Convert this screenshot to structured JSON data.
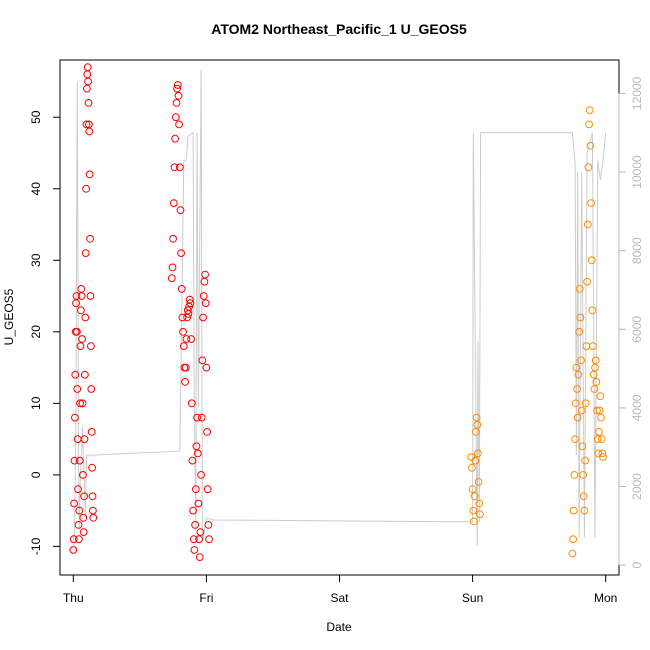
{
  "chart_data": {
    "type": "scatter",
    "title": "ATOM2 Northeast_Pacific_1 U_GEOS5",
    "xlabel": "Date",
    "ylabel": "U_GEOS5",
    "x_ticks": [
      "Thu",
      "Fri",
      "Sat",
      "Sun",
      "Mon"
    ],
    "x_tick_positions": [
      0,
      1,
      2,
      3,
      4
    ],
    "xlim": [
      -0.1,
      4.1
    ],
    "ylim": [
      -14,
      58
    ],
    "y_ticks": [
      -10,
      0,
      10,
      20,
      30,
      40,
      50
    ],
    "y2lim": [
      -250,
      12850
    ],
    "y2_ticks": [
      0,
      2000,
      4000,
      6000,
      8000,
      10000,
      12000
    ],
    "grid": false,
    "series": [
      {
        "color": "#ff0000",
        "marker": "open-circle",
        "points": [
          [
            0.0,
            -10.5
          ],
          [
            0.003,
            -9.0
          ],
          [
            0.006,
            -4.0
          ],
          [
            0.009,
            2.0
          ],
          [
            0.012,
            8.0
          ],
          [
            0.015,
            14.0
          ],
          [
            0.018,
            20.0
          ],
          [
            0.021,
            24.0
          ],
          [
            0.024,
            25.0
          ],
          [
            0.027,
            20.0
          ],
          [
            0.03,
            12.0
          ],
          [
            0.033,
            5.0
          ],
          [
            0.036,
            -2.0
          ],
          [
            0.039,
            -7.0
          ],
          [
            0.042,
            -9.0
          ],
          [
            0.045,
            -5.0
          ],
          [
            0.048,
            2.0
          ],
          [
            0.051,
            10.0
          ],
          [
            0.054,
            18.0
          ],
          [
            0.057,
            23.0
          ],
          [
            0.06,
            26.0
          ],
          [
            0.063,
            25.0
          ],
          [
            0.066,
            19.0
          ],
          [
            0.069,
            10.0
          ],
          [
            0.072,
            0.0
          ],
          [
            0.075,
            -6.0
          ],
          [
            0.078,
            -8.0
          ],
          [
            0.081,
            -3.0
          ],
          [
            0.084,
            5.0
          ],
          [
            0.087,
            14.0
          ],
          [
            0.09,
            22.0
          ],
          [
            0.093,
            31.0
          ],
          [
            0.096,
            40.0
          ],
          [
            0.099,
            49.0
          ],
          [
            0.102,
            54.0
          ],
          [
            0.105,
            56.0
          ],
          [
            0.108,
            57.0
          ],
          [
            0.111,
            55.0
          ],
          [
            0.114,
            52.0
          ],
          [
            0.117,
            49.0
          ],
          [
            0.12,
            48.0
          ],
          [
            0.123,
            42.0
          ],
          [
            0.126,
            33.0
          ],
          [
            0.129,
            25.0
          ],
          [
            0.132,
            18.0
          ],
          [
            0.135,
            12.0
          ],
          [
            0.138,
            6.0
          ],
          [
            0.141,
            1.0
          ],
          [
            0.144,
            -3.0
          ],
          [
            0.147,
            -5.0
          ],
          [
            0.15,
            -6.0
          ],
          [
            0.74,
            27.5
          ],
          [
            0.745,
            29.0
          ],
          [
            0.75,
            33.0
          ],
          [
            0.755,
            38.0
          ],
          [
            0.76,
            43.0
          ],
          [
            0.765,
            47.0
          ],
          [
            0.77,
            50.0
          ],
          [
            0.775,
            52.0
          ],
          [
            0.78,
            54.0
          ],
          [
            0.785,
            54.5
          ],
          [
            0.79,
            53.0
          ],
          [
            0.795,
            49.0
          ],
          [
            0.8,
            43.0
          ],
          [
            0.805,
            37.0
          ],
          [
            0.81,
            31.0
          ],
          [
            0.815,
            26.0
          ],
          [
            0.82,
            22.0
          ],
          [
            0.825,
            20.0
          ],
          [
            0.83,
            18.0
          ],
          [
            0.835,
            15.0
          ],
          [
            0.84,
            13.0
          ],
          [
            0.845,
            15.0
          ],
          [
            0.85,
            19.0
          ],
          [
            0.855,
            22.0
          ],
          [
            0.86,
            23.0
          ],
          [
            0.865,
            22.5
          ],
          [
            0.87,
            23.5
          ],
          [
            0.875,
            24.5
          ],
          [
            0.88,
            24.0
          ],
          [
            0.885,
            19.0
          ],
          [
            0.89,
            10.0
          ],
          [
            0.895,
            2.0
          ],
          [
            0.9,
            -5.0
          ],
          [
            0.905,
            -9.0
          ],
          [
            0.91,
            -10.5
          ],
          [
            0.915,
            -7.0
          ],
          [
            0.92,
            -2.0
          ],
          [
            0.925,
            4.0
          ],
          [
            0.93,
            8.0
          ],
          [
            0.935,
            3.0
          ],
          [
            0.94,
            -4.0
          ],
          [
            0.945,
            -9.0
          ],
          [
            0.95,
            -11.5
          ],
          [
            0.955,
            -8.0
          ],
          [
            0.96,
            0.0
          ],
          [
            0.965,
            8.0
          ],
          [
            0.97,
            16.0
          ],
          [
            0.975,
            22.0
          ],
          [
            0.98,
            25.0
          ],
          [
            0.985,
            27.0
          ],
          [
            0.99,
            28.0
          ],
          [
            0.995,
            24.0
          ],
          [
            1.0,
            15.0
          ],
          [
            1.005,
            6.0
          ],
          [
            1.01,
            -2.0
          ],
          [
            1.015,
            -7.0
          ],
          [
            1.02,
            -9.0
          ]
        ]
      },
      {
        "color": "#ff8c00",
        "marker": "open-circle",
        "points": [
          [
            2.99,
            2.5
          ],
          [
            2.995,
            1.0
          ],
          [
            3.0,
            -2.0
          ],
          [
            3.005,
            -5.0
          ],
          [
            3.01,
            -6.5
          ],
          [
            3.015,
            -3.0
          ],
          [
            3.02,
            2.0
          ],
          [
            3.025,
            6.0
          ],
          [
            3.03,
            8.0
          ],
          [
            3.035,
            7.0
          ],
          [
            3.04,
            3.0
          ],
          [
            3.045,
            -1.0
          ],
          [
            3.05,
            -4.0
          ],
          [
            3.055,
            -5.5
          ],
          [
            3.75,
            -11.0
          ],
          [
            3.755,
            -9.0
          ],
          [
            3.76,
            -5.0
          ],
          [
            3.765,
            0.0
          ],
          [
            3.77,
            5.0
          ],
          [
            3.775,
            10.0
          ],
          [
            3.78,
            15.0
          ],
          [
            3.785,
            12.0
          ],
          [
            3.79,
            8.0
          ],
          [
            3.795,
            14.0
          ],
          [
            3.8,
            20.0
          ],
          [
            3.805,
            26.0
          ],
          [
            3.81,
            22.0
          ],
          [
            3.815,
            16.0
          ],
          [
            3.82,
            9.0
          ],
          [
            3.825,
            4.0
          ],
          [
            3.83,
            0.0
          ],
          [
            3.835,
            -3.0
          ],
          [
            3.84,
            -5.0
          ],
          [
            3.845,
            2.0
          ],
          [
            3.85,
            10.0
          ],
          [
            3.855,
            18.0
          ],
          [
            3.86,
            27.0
          ],
          [
            3.865,
            35.0
          ],
          [
            3.87,
            43.0
          ],
          [
            3.875,
            49.0
          ],
          [
            3.88,
            51.0
          ],
          [
            3.885,
            46.0
          ],
          [
            3.89,
            38.0
          ],
          [
            3.895,
            30.0
          ],
          [
            3.9,
            23.0
          ],
          [
            3.905,
            18.0
          ],
          [
            3.91,
            14.0
          ],
          [
            3.915,
            12.0
          ],
          [
            3.92,
            15.0
          ],
          [
            3.925,
            16.0
          ],
          [
            3.93,
            13.0
          ],
          [
            3.935,
            9.0
          ],
          [
            3.94,
            5.0
          ],
          [
            3.945,
            3.0
          ],
          [
            3.95,
            6.0
          ],
          [
            3.955,
            9.0
          ],
          [
            3.96,
            11.0
          ],
          [
            3.965,
            8.0
          ],
          [
            3.97,
            5.0
          ],
          [
            3.975,
            3.0
          ],
          [
            3.98,
            2.5
          ]
        ]
      },
      {
        "color": "#cccccc",
        "marker": "line",
        "axis": "right",
        "points": [
          [
            0.0,
            600
          ],
          [
            0.01,
            900
          ],
          [
            0.02,
            4000
          ],
          [
            0.025,
            9000
          ],
          [
            0.03,
            12300
          ],
          [
            0.035,
            7000
          ],
          [
            0.04,
            2500
          ],
          [
            0.045,
            900
          ],
          [
            0.05,
            2000
          ],
          [
            0.07,
            3500
          ],
          [
            0.09,
            1200
          ],
          [
            0.1,
            2800
          ],
          [
            0.14,
            2800
          ],
          [
            0.8,
            2900
          ],
          [
            0.83,
            10300
          ],
          [
            0.85,
            10300
          ],
          [
            0.86,
            10900
          ],
          [
            0.9,
            11000
          ],
          [
            0.91,
            4000
          ],
          [
            0.92,
            900
          ],
          [
            0.93,
            11000
          ],
          [
            0.94,
            4000
          ],
          [
            0.96,
            12600
          ],
          [
            0.97,
            600
          ],
          [
            1.0,
            1200
          ],
          [
            1.05,
            1150
          ],
          [
            3.0,
            1100
          ],
          [
            3.005,
            11000
          ],
          [
            3.03,
            2000
          ],
          [
            3.035,
            500
          ],
          [
            3.04,
            5700
          ],
          [
            3.05,
            1100
          ],
          [
            3.06,
            11000
          ],
          [
            3.75,
            11000
          ],
          [
            3.77,
            10200
          ],
          [
            3.78,
            2800
          ],
          [
            3.79,
            10000
          ],
          [
            3.8,
            700
          ],
          [
            3.82,
            10000
          ],
          [
            3.84,
            700
          ],
          [
            3.86,
            10500
          ],
          [
            3.9,
            11000
          ],
          [
            3.92,
            700
          ],
          [
            3.94,
            10300
          ],
          [
            3.96,
            9800
          ],
          [
            3.98,
            10300
          ],
          [
            4.0,
            11000
          ]
        ]
      }
    ]
  }
}
